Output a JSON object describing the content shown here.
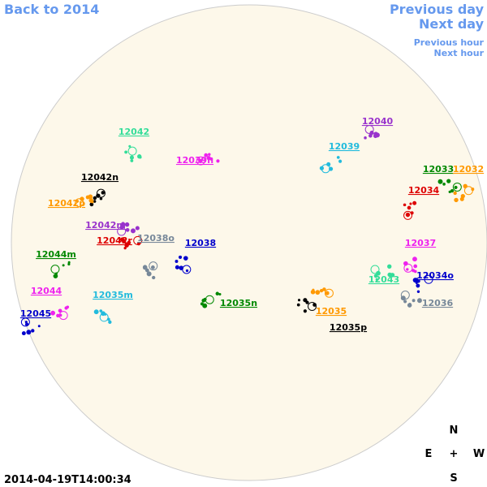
{
  "nav": {
    "back": "Back to 2014",
    "previous_day": "Previous day",
    "next_day": "Next day",
    "previous_hour": "Previous hour",
    "next_hour": "Next hour"
  },
  "timestamp": "2014-04-19T14:00:34",
  "compass": {
    "north": "N",
    "east": "E",
    "center": "+",
    "west": "W",
    "south": "S"
  },
  "regions": [
    {
      "label": "12042",
      "color": "#33dd99"
    },
    {
      "label": "12040",
      "color": "#9933cc"
    },
    {
      "label": "12039",
      "color": "#22bbdd"
    },
    {
      "label": "12039n",
      "color": "#ee22ee"
    },
    {
      "label": "12033",
      "color": "#008800"
    },
    {
      "label": "12032",
      "color": "#ff9900"
    },
    {
      "label": "12042n",
      "color": "#000000"
    },
    {
      "label": "12034",
      "color": "#dd0000"
    },
    {
      "label": "12042p",
      "color": "#ff9900"
    },
    {
      "label": "12042m",
      "color": "#9933cc"
    },
    {
      "label": "12042r",
      "color": "#dd0000"
    },
    {
      "label": "12038o",
      "color": "#778899"
    },
    {
      "label": "12038",
      "color": "#0000cc"
    },
    {
      "label": "12037",
      "color": "#ee22ee"
    },
    {
      "label": "12044m",
      "color": "#008800"
    },
    {
      "label": "12043",
      "color": "#33dd99"
    },
    {
      "label": "12034o",
      "color": "#0000cc"
    },
    {
      "label": "12044",
      "color": "#ee22ee"
    },
    {
      "label": "12035m",
      "color": "#22bbdd"
    },
    {
      "label": "12035n",
      "color": "#008800"
    },
    {
      "label": "12036",
      "color": "#778899"
    },
    {
      "label": "12045",
      "color": "#0000cc"
    },
    {
      "label": "12035",
      "color": "#ff9900"
    },
    {
      "label": "12035p",
      "color": "#000000"
    }
  ]
}
